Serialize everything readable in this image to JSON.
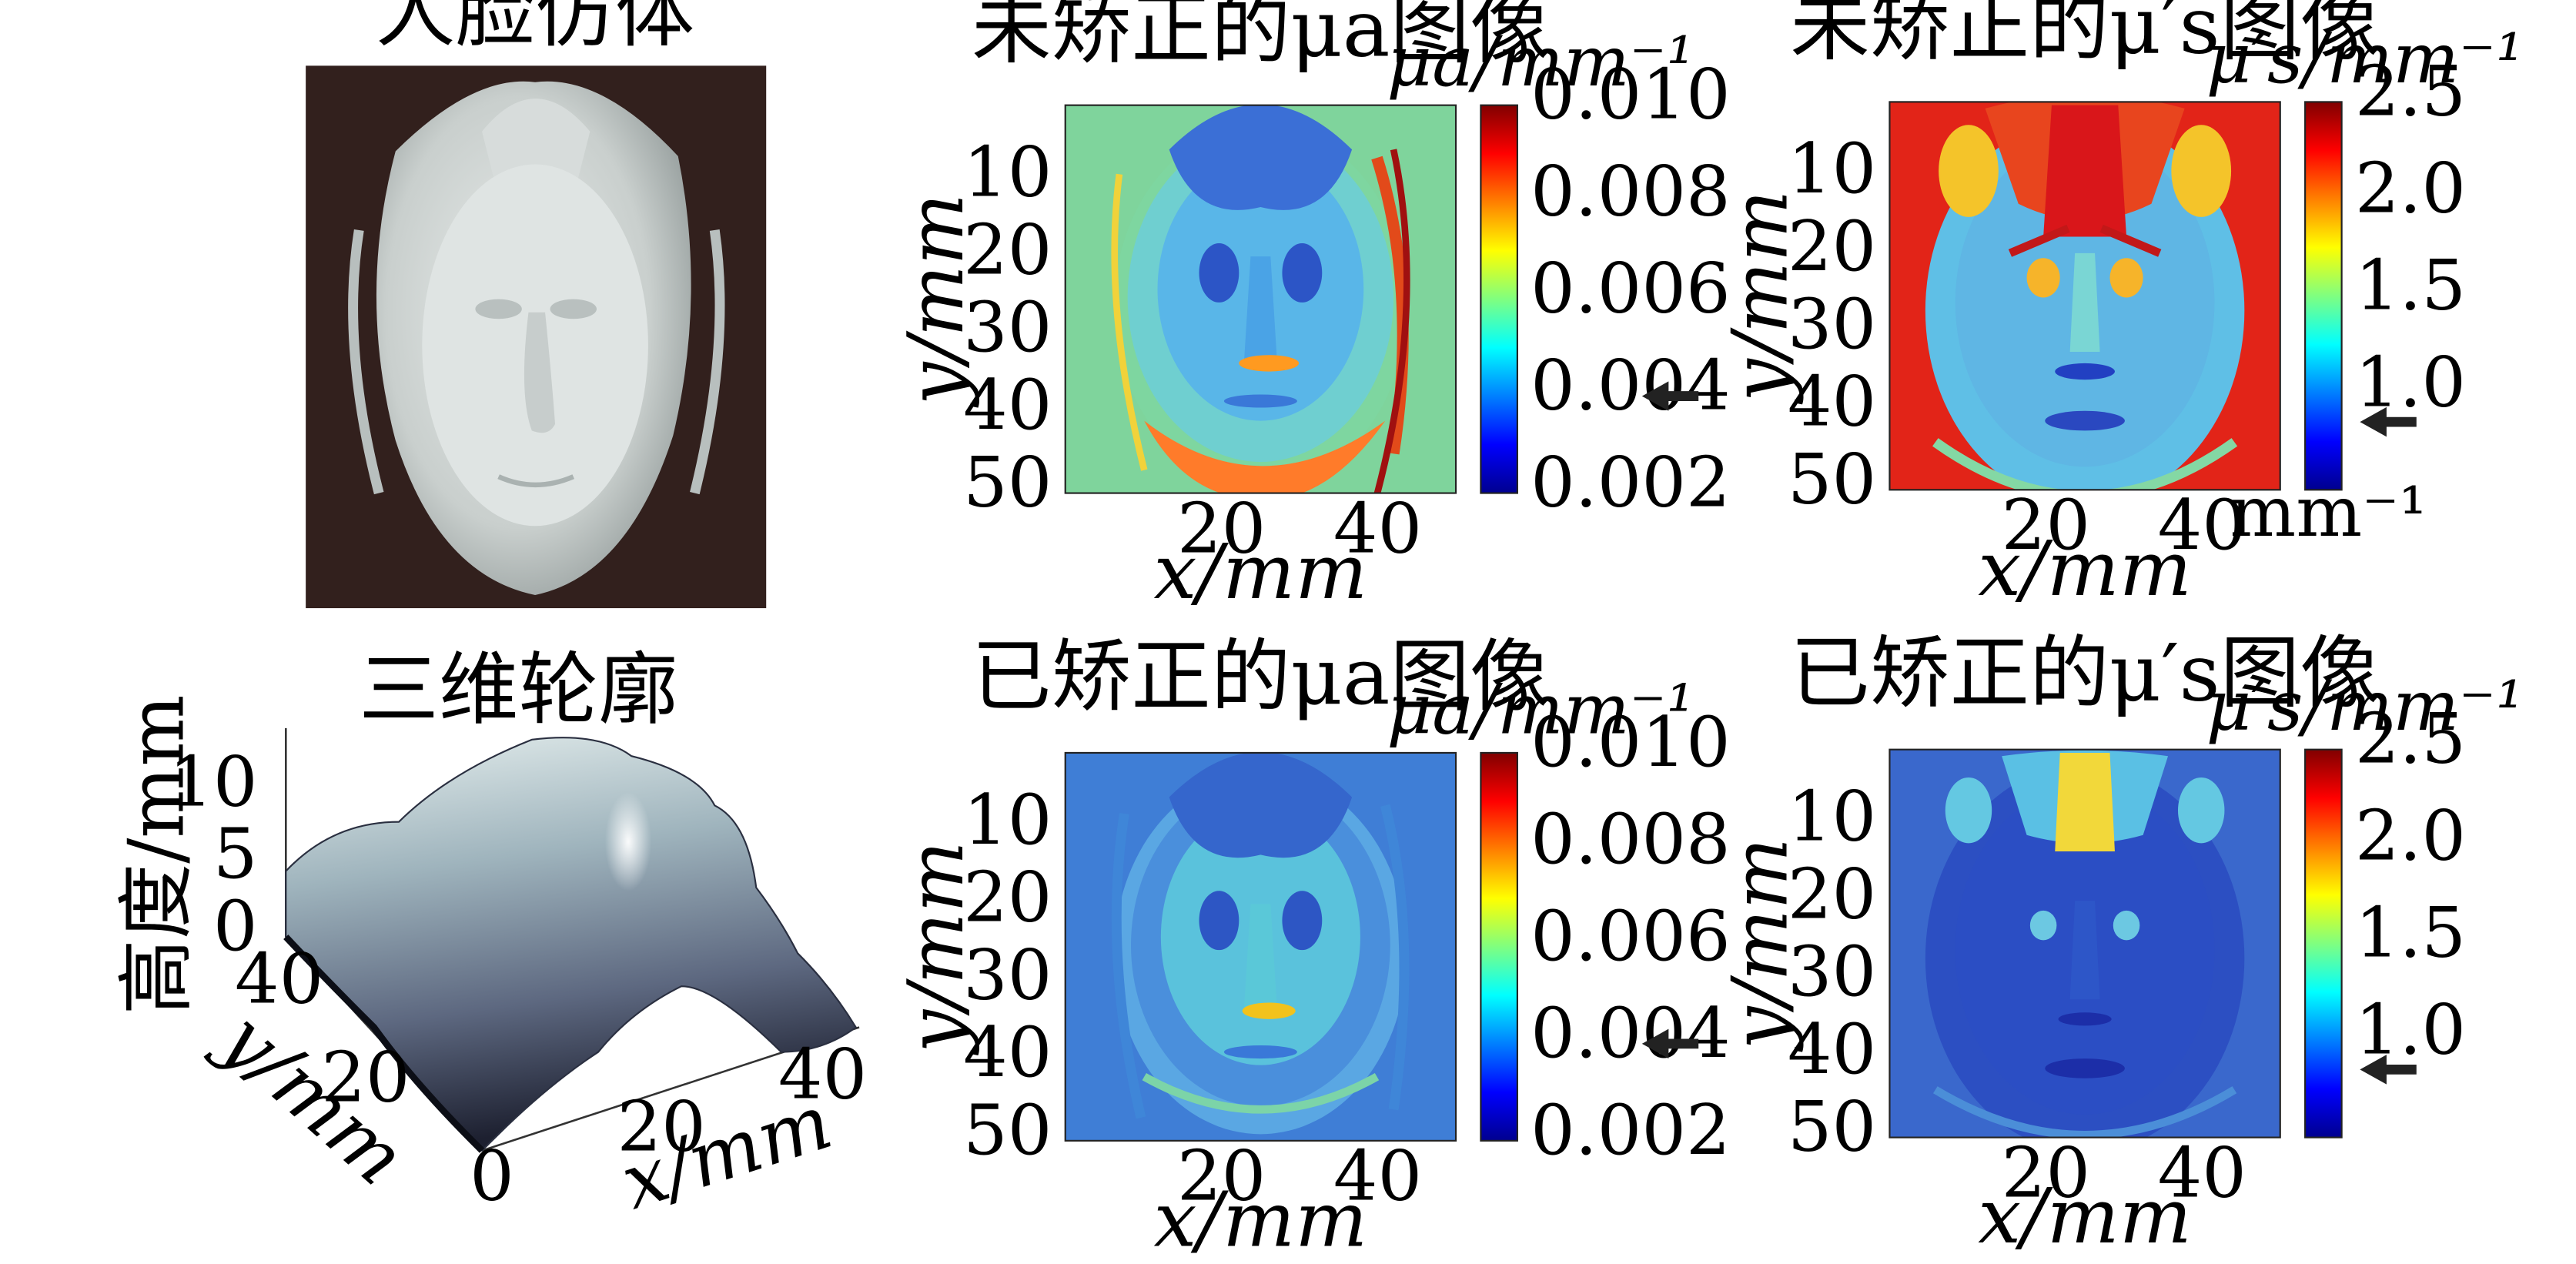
{
  "figure": {
    "panels": {
      "photo": {
        "title": "人脸仿体"
      },
      "profile": {
        "title": "三维轮廓",
        "zlabel": "高度/mm",
        "ylabel": "y/mm",
        "xlabel": "x/mm",
        "z_ticks": [
          "10",
          "5",
          "0"
        ],
        "y_ticks": [
          "40",
          "20",
          "0"
        ],
        "x_ticks": [
          "20",
          "40"
        ]
      },
      "mua_uncorrected": {
        "title": "未矫正的μa图像",
        "colorbar_label": "μa/mm⁻¹",
        "colorbar_ticks": [
          "0.010",
          "0.008",
          "0.006",
          "0.004",
          "0.002"
        ],
        "colorbar_range": [
          0.002,
          0.01
        ],
        "arrow_value": 0.004,
        "xlabel": "x/mm",
        "ylabel": "y/mm",
        "x_ticks": [
          "20",
          "40"
        ],
        "y_ticks": [
          "10",
          "20",
          "30",
          "40",
          "50"
        ]
      },
      "mus_uncorrected": {
        "title": "未矫正的μ′s图像",
        "colorbar_label": "μ′s/mm⁻¹",
        "colorbar_ticks": [
          "2.5",
          "2.0",
          "1.5",
          "1.0"
        ],
        "colorbar_unit_below": "mm⁻¹",
        "colorbar_range": [
          0.5,
          2.5
        ],
        "arrow_value": 0.85,
        "xlabel": "x/mm",
        "ylabel": "y/mm",
        "x_ticks": [
          "20",
          "40"
        ],
        "y_ticks": [
          "10",
          "20",
          "30",
          "40",
          "50"
        ]
      },
      "mua_corrected": {
        "title": "已矫正的μa图像",
        "colorbar_label": "μa/mm⁻¹",
        "colorbar_ticks": [
          "0.010",
          "0.008",
          "0.006",
          "0.004",
          "0.002"
        ],
        "colorbar_range": [
          0.002,
          0.01
        ],
        "arrow_value": 0.004,
        "xlabel": "x/mm",
        "ylabel": "y/mm",
        "x_ticks": [
          "20",
          "40"
        ],
        "y_ticks": [
          "10",
          "20",
          "30",
          "40",
          "50"
        ]
      },
      "mus_corrected": {
        "title": "已矫正的μ′s图像",
        "colorbar_label": "μ′s/mm⁻¹",
        "colorbar_ticks": [
          "2.5",
          "2.0",
          "1.5",
          "1.0"
        ],
        "colorbar_range": [
          0.5,
          2.5
        ],
        "arrow_value": 0.85,
        "xlabel": "x/mm",
        "ylabel": "y/mm",
        "x_ticks": [
          "20",
          "40"
        ],
        "y_ticks": [
          "10",
          "20",
          "30",
          "40",
          "50"
        ]
      }
    }
  }
}
